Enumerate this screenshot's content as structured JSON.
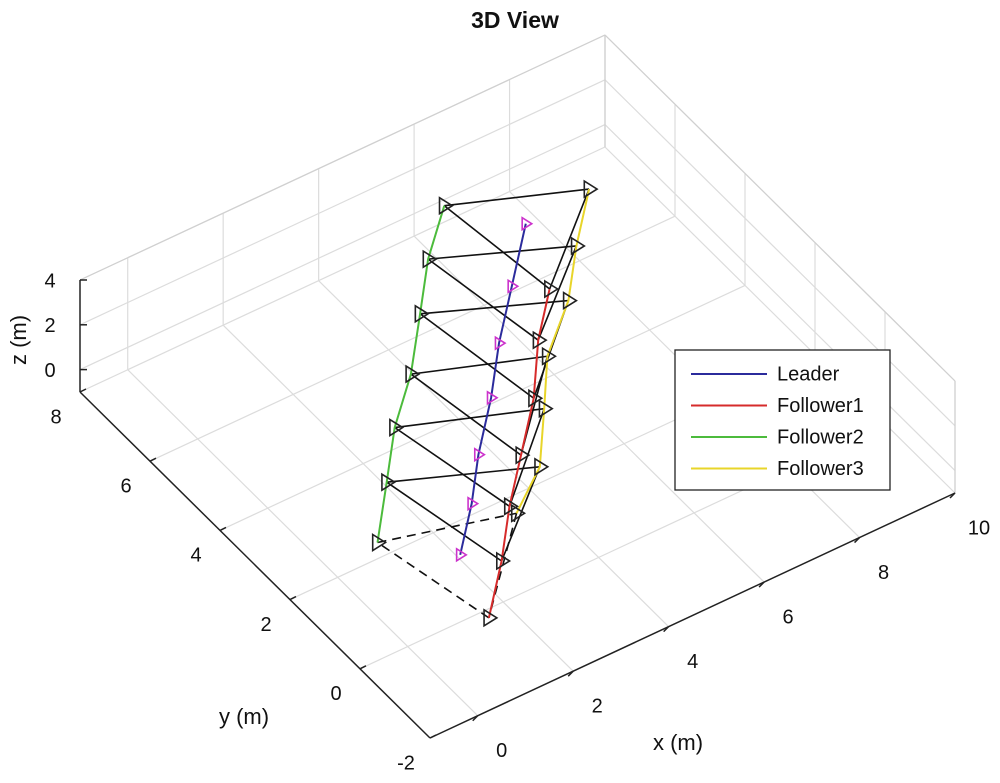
{
  "chart_data": {
    "type": "line3d",
    "title": "3D View",
    "xlabel": "x (m)",
    "ylabel": "y (m)",
    "zlabel": "z (m)",
    "xlim": [
      -1,
      10
    ],
    "ylim": [
      -2,
      8
    ],
    "zlim": [
      -1,
      4
    ],
    "xticks": [
      0,
      2,
      4,
      6,
      8,
      10
    ],
    "yticks": [
      -2,
      0,
      2,
      4,
      6,
      8
    ],
    "zticks": [
      0,
      2,
      4
    ],
    "grid": true,
    "legend": "east",
    "series": [
      {
        "name": "Leader",
        "color": "#2b2b9c",
        "marker_color": "#cc33cc",
        "x": [
          1.1,
          2.0,
          2.8,
          3.8,
          4.7,
          5.7,
          6.8
        ],
        "y": [
          0.0,
          0.9,
          1.8,
          2.8,
          3.8,
          4.8,
          5.9
        ],
        "z": [
          2,
          2,
          2,
          2,
          2,
          2,
          2
        ]
      },
      {
        "name": "Follower1",
        "color": "#d62b2b",
        "marker_color": "#222222",
        "x": [
          0.6,
          1.6,
          2.5,
          3.4,
          4.4,
          5.3,
          6.2
        ],
        "y": [
          -1.5,
          -0.5,
          0.5,
          1.4,
          2.4,
          3.5,
          4.4
        ],
        "z": [
          2,
          2,
          2,
          2,
          2,
          2,
          2
        ]
      },
      {
        "name": "Follower2",
        "color": "#4cbb3c",
        "marker_color": "#222222",
        "x": [
          0.1,
          1.1,
          2.0,
          3.0,
          4.0,
          4.9,
          5.9
        ],
        "y": [
          1.0,
          2.1,
          3.1,
          4.0,
          5.1,
          6.1,
          7.0
        ],
        "z": [
          2,
          2,
          2,
          2,
          2,
          2,
          2
        ]
      },
      {
        "name": "Follower3",
        "color": "#e8d52a",
        "marker_color": "#222222",
        "x": [
          2.5,
          3.5,
          4.4,
          5.2,
          6.3,
          7.2,
          8.2
        ],
        "y": [
          0.3,
          1.0,
          2.1,
          3.1,
          4.0,
          5.0,
          6.0
        ],
        "z": [
          2,
          2,
          2,
          2,
          2,
          2,
          2
        ]
      }
    ]
  }
}
